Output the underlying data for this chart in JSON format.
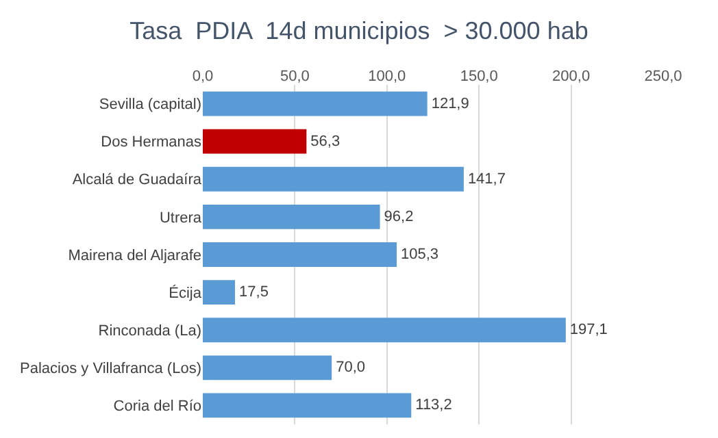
{
  "chart_data": {
    "type": "bar",
    "orientation": "horizontal",
    "title": "Tasa  PDIA  14d municipios  > 30.000 hab",
    "categories": [
      "Sevilla (capital)",
      "Dos Hermanas",
      "Alcalá de Guadaíra",
      "Utrera",
      "Mairena del Aljarafe",
      "Écija",
      "Rinconada (La)",
      "Palacios y Villafranca (Los)",
      "Coria del Río"
    ],
    "values": [
      121.9,
      56.3,
      141.7,
      96.2,
      105.3,
      17.5,
      197.1,
      70.0,
      113.2
    ],
    "value_labels": [
      "121,9",
      "56,3",
      "141,7",
      "96,2",
      "105,3",
      "17,5",
      "197,1",
      "70,0",
      "113,2"
    ],
    "colors": [
      "#5b9bd5",
      "#c00000",
      "#5b9bd5",
      "#5b9bd5",
      "#5b9bd5",
      "#5b9bd5",
      "#5b9bd5",
      "#5b9bd5",
      "#5b9bd5"
    ],
    "xlim": [
      0,
      250
    ],
    "xticks": [
      {
        "value": 0,
        "label": "0,0"
      },
      {
        "value": 50,
        "label": "50,0"
      },
      {
        "value": 100,
        "label": "100,0"
      },
      {
        "value": 150,
        "label": "150,0"
      },
      {
        "value": 200,
        "label": "200,0"
      },
      {
        "value": 250,
        "label": "250,0"
      }
    ],
    "grid": "x",
    "legend": false
  }
}
